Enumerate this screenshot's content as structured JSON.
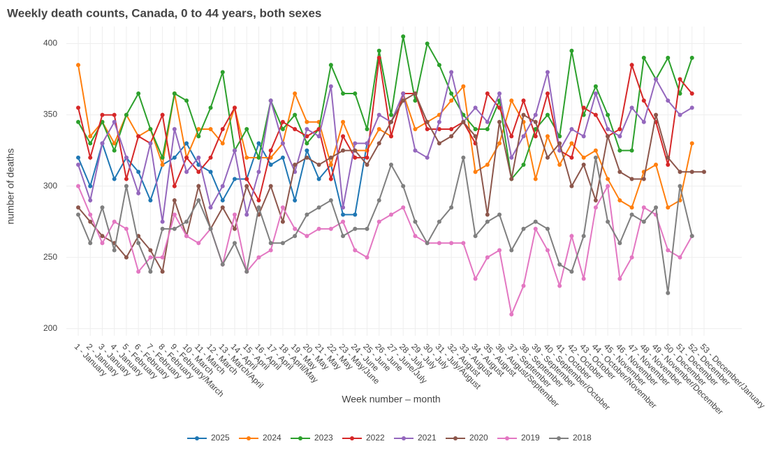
{
  "chart_data": {
    "type": "line",
    "title": "Weekly death counts, Canada, 0 to 44 years, both sexes",
    "xlabel": "Week number – month",
    "ylabel": "number of deaths",
    "categories": [
      "1 - January",
      "2 - January",
      "3 - January",
      "4 - January",
      "5 - February",
      "6 - February",
      "7 - February",
      "8 - February",
      "9 - February/March",
      "10 - March",
      "11 - March",
      "12 - March",
      "13 - March/April",
      "14 - April",
      "15 - April",
      "16 - April",
      "17 - April",
      "18 - April/May",
      "19 - May",
      "20 - May",
      "21 - May",
      "22 - May",
      "23 - May/June",
      "24 - June",
      "25 - June",
      "26 - June",
      "27 - June/July",
      "28 - July",
      "29 - July",
      "30 - July",
      "31 - July/August",
      "32 - August",
      "33 - August",
      "34 - August",
      "35 - August",
      "36 - August/September",
      "37 - September",
      "38 - September",
      "39 - September",
      "40 - September/October",
      "41 - October",
      "42 - October",
      "43 - October",
      "44 - October/November",
      "45 - November",
      "46 - November",
      "47 - November",
      "48 - November",
      "49 - November/December",
      "50 - December",
      "51 - December",
      "52 - December",
      "53 - December/January"
    ],
    "series": [
      {
        "name": "2025",
        "color": "#1f77b4",
        "values": [
          320,
          300,
          330,
          305,
          320,
          310,
          290,
          315,
          320,
          330,
          315,
          310,
          290,
          305,
          305,
          330,
          315,
          320,
          290,
          325,
          305,
          315,
          280,
          280,
          330,
          null,
          null,
          null,
          null,
          null,
          null,
          null,
          null,
          null,
          null,
          null,
          null,
          null,
          null,
          null,
          null,
          null,
          null,
          null,
          null,
          null,
          null,
          null,
          null,
          null,
          null,
          null,
          null
        ]
      },
      {
        "name": "2024",
        "color": "#ff7f0e",
        "values": [
          385,
          335,
          345,
          330,
          350,
          335,
          340,
          315,
          365,
          320,
          340,
          340,
          330,
          355,
          320,
          320,
          320,
          330,
          365,
          345,
          345,
          315,
          345,
          325,
          325,
          340,
          335,
          365,
          340,
          345,
          350,
          360,
          370,
          310,
          315,
          330,
          360,
          345,
          305,
          335,
          315,
          330,
          320,
          325,
          305,
          290,
          285,
          310,
          315,
          285,
          290,
          330,
          null
        ]
      },
      {
        "name": "2023",
        "color": "#2ca02c",
        "values": [
          345,
          330,
          345,
          325,
          350,
          365,
          340,
          320,
          365,
          360,
          335,
          355,
          380,
          325,
          340,
          320,
          360,
          340,
          350,
          330,
          340,
          385,
          365,
          365,
          340,
          395,
          350,
          405,
          360,
          400,
          385,
          365,
          350,
          340,
          340,
          360,
          305,
          315,
          340,
          350,
          335,
          395,
          350,
          370,
          350,
          325,
          325,
          390,
          375,
          390,
          365,
          390,
          null
        ]
      },
      {
        "name": "2022",
        "color": "#d62728",
        "values": [
          355,
          320,
          350,
          350,
          305,
          335,
          330,
          350,
          300,
          320,
          310,
          320,
          340,
          355,
          305,
          290,
          325,
          345,
          340,
          335,
          340,
          305,
          335,
          320,
          320,
          390,
          335,
          365,
          365,
          340,
          340,
          340,
          345,
          330,
          365,
          355,
          335,
          360,
          335,
          365,
          325,
          320,
          355,
          350,
          335,
          340,
          385,
          360,
          345,
          315,
          375,
          365,
          null
        ]
      },
      {
        "name": "2021",
        "color": "#9467bd",
        "values": [
          315,
          290,
          330,
          345,
          320,
          295,
          330,
          275,
          340,
          310,
          320,
          285,
          300,
          325,
          280,
          310,
          360,
          330,
          310,
          340,
          335,
          370,
          285,
          330,
          330,
          350,
          345,
          365,
          325,
          320,
          345,
          380,
          345,
          355,
          345,
          365,
          320,
          335,
          350,
          380,
          325,
          340,
          335,
          365,
          340,
          335,
          355,
          345,
          375,
          360,
          350,
          355,
          null
        ]
      },
      {
        "name": "2020",
        "color": "#8c564b",
        "values": [
          285,
          275,
          265,
          260,
          250,
          265,
          255,
          240,
          290,
          265,
          300,
          270,
          285,
          270,
          300,
          280,
          300,
          275,
          315,
          320,
          315,
          320,
          325,
          325,
          315,
          330,
          345,
          360,
          365,
          345,
          330,
          335,
          345,
          335,
          280,
          345,
          305,
          350,
          345,
          320,
          330,
          300,
          315,
          290,
          335,
          310,
          305,
          305,
          350,
          320,
          310,
          310,
          310
        ]
      },
      {
        "name": "2019",
        "color": "#e377c2",
        "values": [
          300,
          280,
          260,
          275,
          270,
          240,
          250,
          250,
          280,
          265,
          260,
          270,
          245,
          280,
          240,
          250,
          255,
          285,
          270,
          265,
          270,
          270,
          275,
          255,
          250,
          275,
          280,
          285,
          265,
          260,
          260,
          260,
          260,
          235,
          250,
          255,
          210,
          230,
          270,
          255,
          230,
          265,
          235,
          285,
          300,
          235,
          250,
          285,
          280,
          255,
          250,
          265,
          null
        ]
      },
      {
        "name": "2018",
        "color": "#7f7f7f",
        "values": [
          280,
          260,
          285,
          255,
          300,
          260,
          240,
          270,
          270,
          275,
          290,
          270,
          245,
          260,
          240,
          285,
          260,
          260,
          265,
          280,
          285,
          290,
          265,
          270,
          270,
          290,
          315,
          300,
          275,
          260,
          275,
          285,
          320,
          265,
          275,
          280,
          255,
          270,
          275,
          270,
          245,
          240,
          265,
          320,
          275,
          260,
          280,
          275,
          285,
          225,
          300,
          265,
          null
        ]
      }
    ],
    "ylim": [
      195,
      412
    ],
    "yticks": [
      200,
      250,
      300,
      350,
      400
    ],
    "grid": true,
    "legend": "bottom"
  }
}
